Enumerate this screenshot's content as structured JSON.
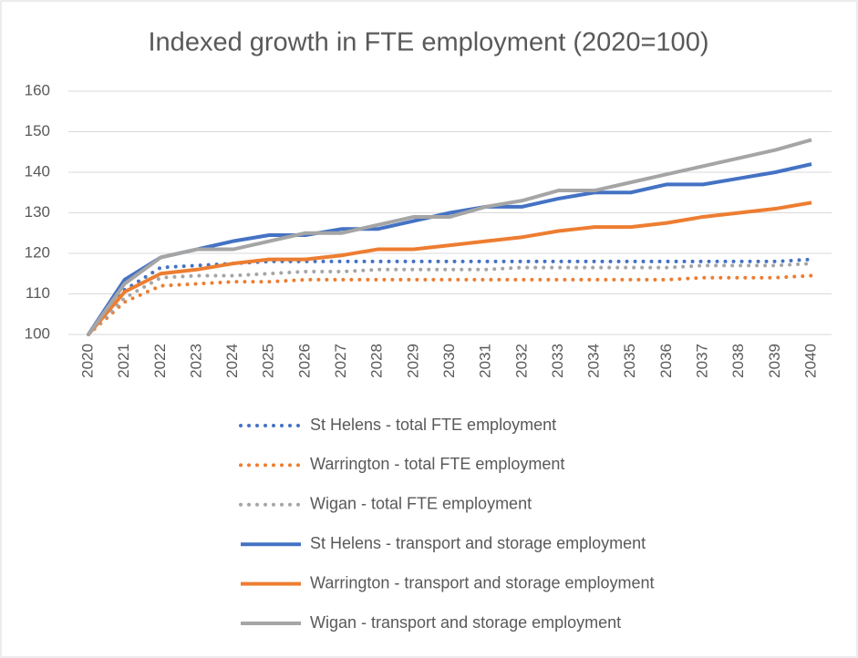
{
  "chart_data": {
    "type": "line",
    "title": "Indexed growth in FTE employment (2020=100)",
    "categories": [
      "2020",
      "2021",
      "2022",
      "2023",
      "2024",
      "2025",
      "2026",
      "2027",
      "2028",
      "2029",
      "2030",
      "2031",
      "2032",
      "2033",
      "2034",
      "2035",
      "2036",
      "2037",
      "2038",
      "2039",
      "2040"
    ],
    "ylim": [
      100,
      160
    ],
    "yticks": [
      100,
      110,
      120,
      130,
      140,
      150,
      160
    ],
    "grid": true,
    "legend": "bottom",
    "series": [
      {
        "name": "St Helens - total FTE employment",
        "color": "#4472c4",
        "style": "dotted",
        "values": [
          100,
          111,
          116.5,
          117,
          117.5,
          118,
          118,
          118,
          118,
          118,
          118,
          118,
          118,
          118,
          118,
          118,
          118,
          118,
          118,
          118,
          118.5
        ]
      },
      {
        "name": "Warrington - total FTE employment",
        "color": "#ed7d31",
        "style": "dotted",
        "values": [
          100,
          108,
          112,
          112.5,
          113,
          113,
          113.5,
          113.5,
          113.5,
          113.5,
          113.5,
          113.5,
          113.5,
          113.5,
          113.5,
          113.5,
          113.5,
          114,
          114,
          114,
          114.5
        ]
      },
      {
        "name": "Wigan - total FTE employment",
        "color": "#a5a5a5",
        "style": "dotted",
        "values": [
          100,
          109,
          114,
          114.5,
          114.5,
          115,
          115.5,
          115.5,
          116,
          116,
          116,
          116,
          116.5,
          116.5,
          116.5,
          116.5,
          116.5,
          117,
          117,
          117,
          117.5
        ]
      },
      {
        "name": "St Helens - transport and storage employment",
        "color": "#4472c4",
        "style": "solid",
        "values": [
          100,
          113.5,
          119,
          121,
          123,
          124.5,
          124.5,
          126,
          126,
          128,
          130,
          131.5,
          131.5,
          133.5,
          135,
          135,
          137,
          137,
          138.5,
          140,
          142
        ]
      },
      {
        "name": "Warrington - transport and storage employment",
        "color": "#ed7d31",
        "style": "solid",
        "values": [
          100,
          110.5,
          115,
          116,
          117.5,
          118.5,
          118.5,
          119.5,
          121,
          121,
          122,
          123,
          124,
          125.5,
          126.5,
          126.5,
          127.5,
          129,
          130,
          131,
          132.5
        ]
      },
      {
        "name": "Wigan - transport and storage employment",
        "color": "#a5a5a5",
        "style": "solid",
        "values": [
          100,
          112.5,
          119,
          121,
          121,
          123,
          125,
          125,
          127,
          129,
          129,
          131.5,
          133,
          135.5,
          135.5,
          137.5,
          139.5,
          141.5,
          143.5,
          145.5,
          148
        ]
      }
    ]
  }
}
